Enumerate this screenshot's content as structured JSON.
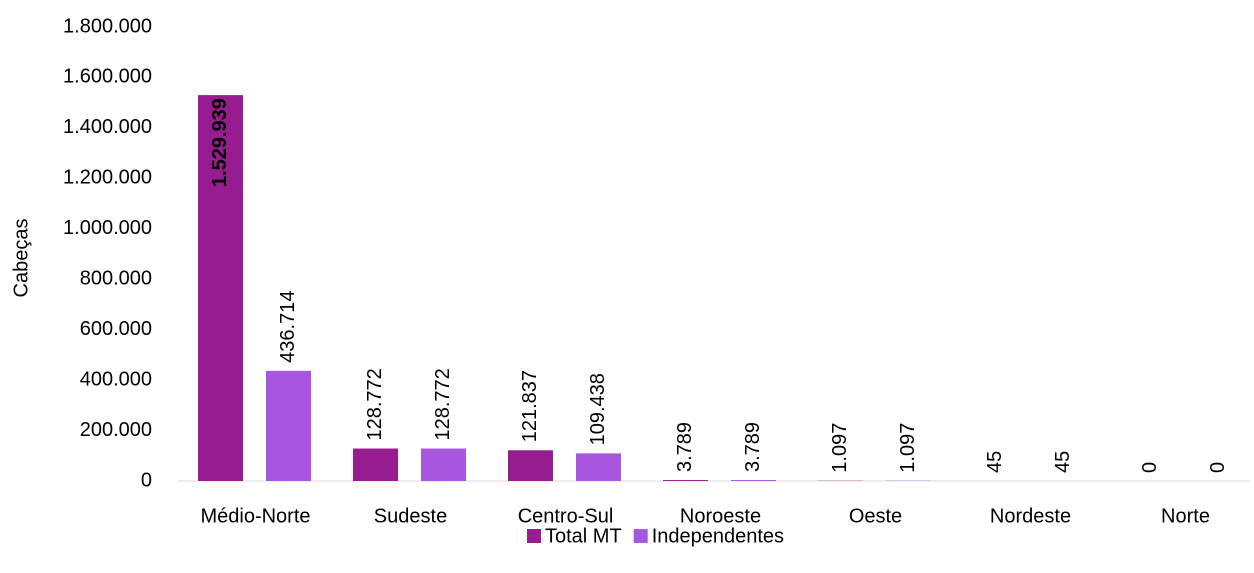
{
  "chart_data": {
    "type": "bar",
    "y_label": "Cabeças",
    "categories": [
      "Médio-Norte",
      "Sudeste",
      "Centro-Sul",
      "Noroeste",
      "Oeste",
      "Nordeste",
      "Norte"
    ],
    "series": [
      {
        "name": "Total MT",
        "color": "#971c8f",
        "values": [
          1529939,
          128772,
          121837,
          3789,
          1097,
          45,
          0
        ],
        "value_labels": [
          "1.529.939",
          "128.772",
          "121.837",
          "3.789",
          "1.097",
          "45",
          "0"
        ]
      },
      {
        "name": "Independentes",
        "color": "#a855e0",
        "values": [
          436714,
          128772,
          109438,
          3789,
          1097,
          45,
          0
        ],
        "value_labels": [
          "436.714",
          "128.772",
          "109.438",
          "3.789",
          "1.097",
          "45",
          "0"
        ]
      }
    ],
    "ylim": [
      0,
      1800000
    ],
    "yticks": [
      0,
      {
        "value": 200000,
        "label": "200.000"
      },
      {
        "value": 400000,
        "label": "400.000"
      },
      {
        "value": 600000,
        "label": "600.000"
      },
      {
        "value": 800000,
        "label": "800.000"
      },
      {
        "value": 1000000,
        "label": "1.000.000"
      },
      {
        "value": 1200000,
        "label": "1.200.000"
      },
      {
        "value": 1400000,
        "label": "1.400.000"
      },
      {
        "value": 1600000,
        "label": "1.600.000"
      },
      {
        "value": 1800000,
        "label": "1.800.000"
      }
    ],
    "grid": false,
    "legend": "bottom"
  }
}
